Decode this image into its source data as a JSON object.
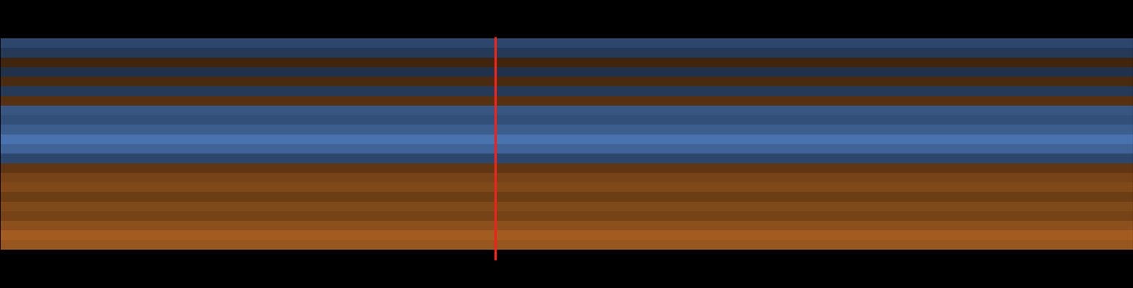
{
  "chart_data": {
    "type": "heatmap",
    "x": [
      0,
      1
    ],
    "xlim": [
      0,
      1
    ],
    "ylim": [
      30,
      0
    ],
    "tick_labels": false,
    "colors": [
      "#5b8fd8",
      "#000000",
      "#d67a2a"
    ],
    "color_range": [
      -1,
      1
    ],
    "cells": [
      [
        0
      ],
      [
        0
      ],
      [
        0
      ],
      [
        0
      ],
      [
        -0.5
      ],
      [
        -0.4
      ],
      [
        0.3
      ],
      [
        -0.35
      ],
      [
        0.35
      ],
      [
        -0.4
      ],
      [
        0.4
      ],
      [
        -0.6
      ],
      [
        -0.55
      ],
      [
        -0.65
      ],
      [
        -0.8
      ],
      [
        -0.7
      ],
      [
        -0.5
      ],
      [
        0.45
      ],
      [
        0.55
      ],
      [
        0.6
      ],
      [
        0.5
      ],
      [
        0.6
      ],
      [
        0.55
      ],
      [
        0.65
      ],
      [
        0.75
      ],
      [
        0.7
      ],
      [
        0
      ],
      [
        0
      ],
      [
        0
      ],
      [
        0
      ]
    ],
    "marker": {
      "x": 0.4375,
      "y_from": 4,
      "y_to": 27,
      "color": "#e8251f"
    }
  }
}
